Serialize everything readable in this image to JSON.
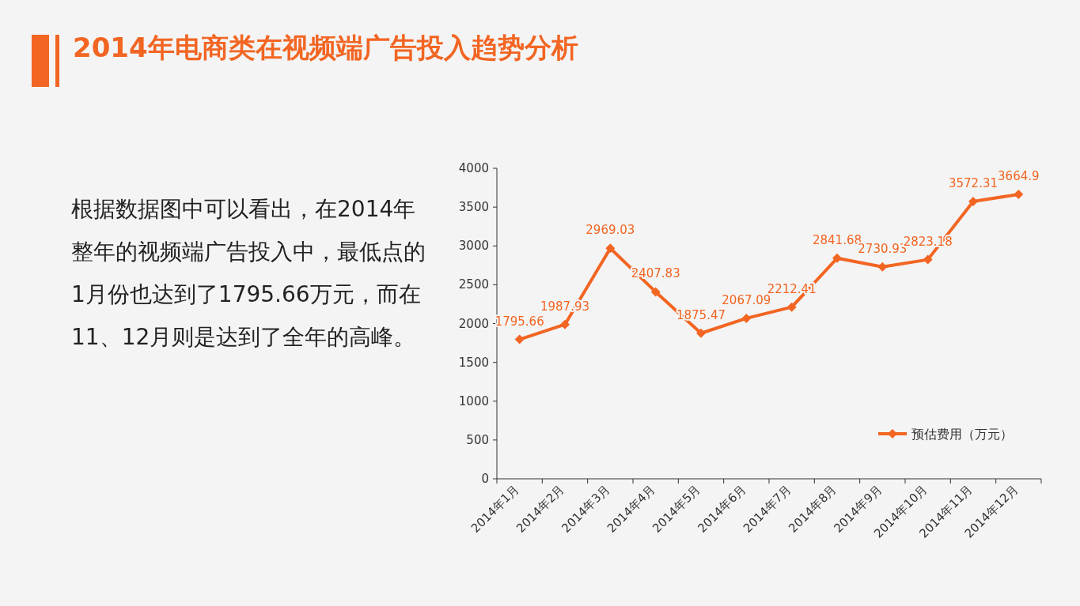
{
  "chart_data": {
    "type": "line",
    "title": "2014年电商类在视频端广告投入趋势分析",
    "annotations": [
      "根据数据图中可以看出，在2014年整年的视频端广告投入中，最低点的1月份也达到了1795.66万元，而在11、12月则是达到了全年的高峰。"
    ],
    "categories": [
      "2014年1月",
      "2014年2月",
      "2014年3月",
      "2014年4月",
      "2014年5月",
      "2014年6月",
      "2014年7月",
      "2014年8月",
      "2014年9月",
      "2014年10月",
      "2014年11月",
      "2014年12月"
    ],
    "series": [
      {
        "name": "预估费用（万元）",
        "color": "#f26522",
        "values": [
          1795.66,
          1987.93,
          2969.03,
          2407.83,
          1875.47,
          2067.09,
          2212.41,
          2841.68,
          2730.93,
          2823.18,
          3572.31,
          3664.9
        ]
      }
    ],
    "data_labels": true,
    "ylim": [
      0,
      4000
    ],
    "yticks": [
      0,
      500,
      1000,
      1500,
      2000,
      2500,
      3000,
      3500,
      4000
    ],
    "legend": "right",
    "marker": "diamond"
  }
}
